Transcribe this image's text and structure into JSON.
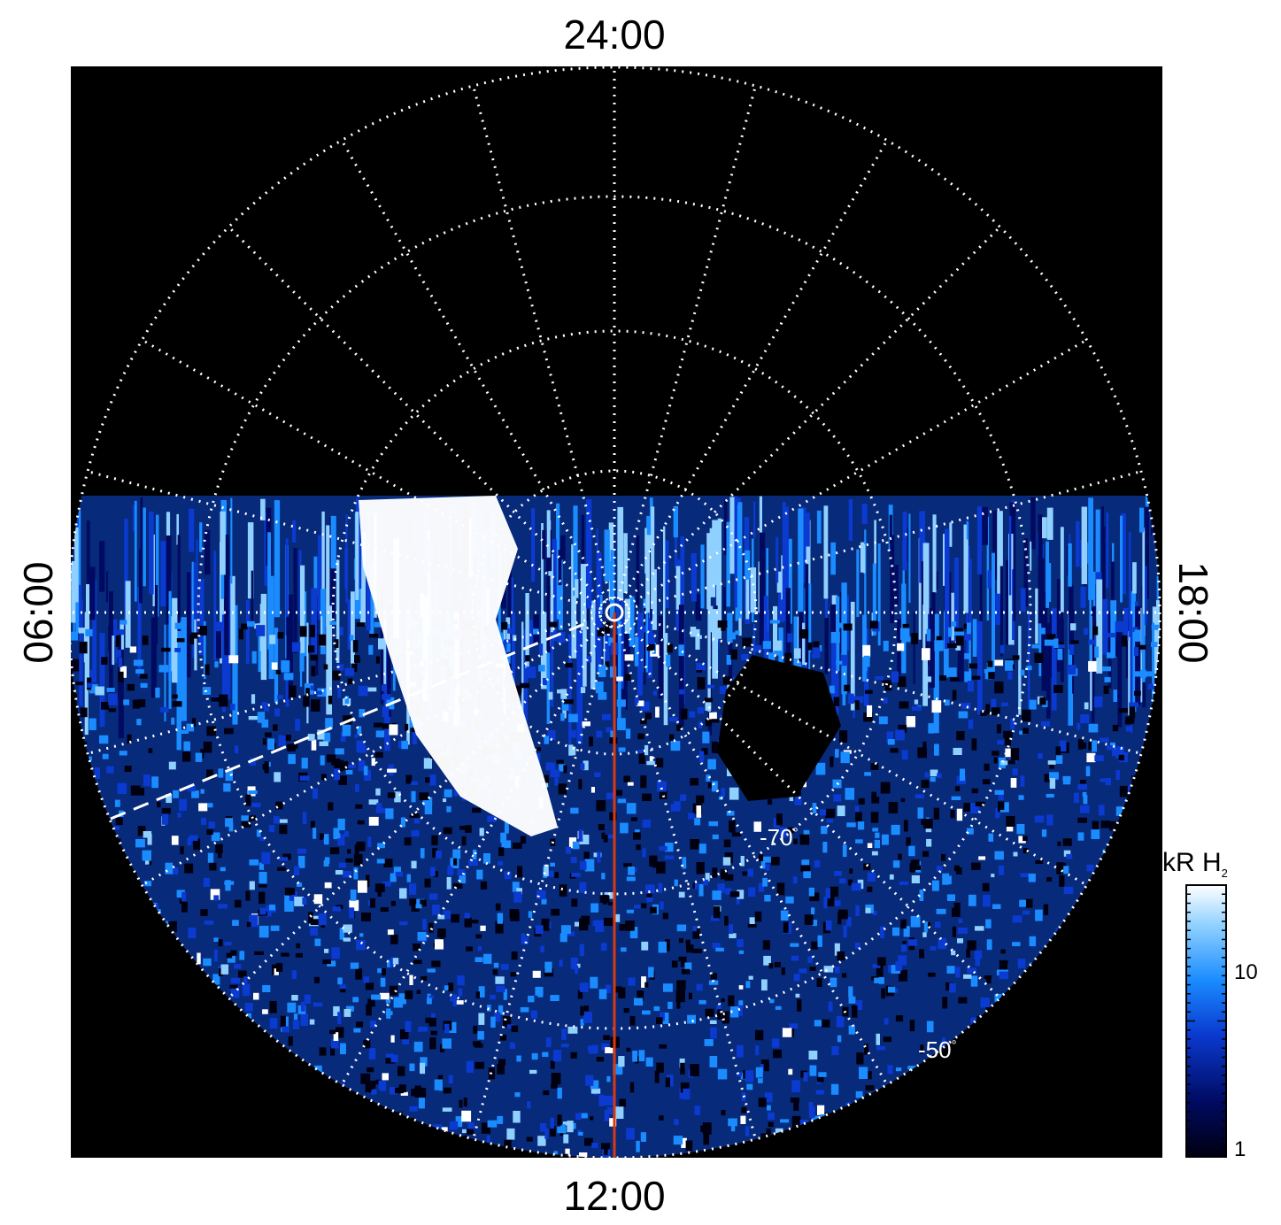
{
  "local_time_labels": {
    "top": "24:00",
    "bottom": "12:00",
    "left": "06:00",
    "right": "18:00"
  },
  "latitude_labels": {
    "inner": "-70",
    "outer": "-50",
    "degree_symbol": "°"
  },
  "colorbar": {
    "unit": "kR H",
    "unit_subscript": "2",
    "tick_labels": [
      "10",
      "1"
    ],
    "colors": [
      "#000010",
      "#000a60",
      "#0a3ad0",
      "#1a8cff",
      "#8fd0ff",
      "#ffffff"
    ]
  },
  "colors": {
    "background": "#000000",
    "grid": "#ffffff",
    "meridian_line": "#d83a10",
    "emission": "#1a8cff",
    "bright_arc": "#ffffff"
  }
}
